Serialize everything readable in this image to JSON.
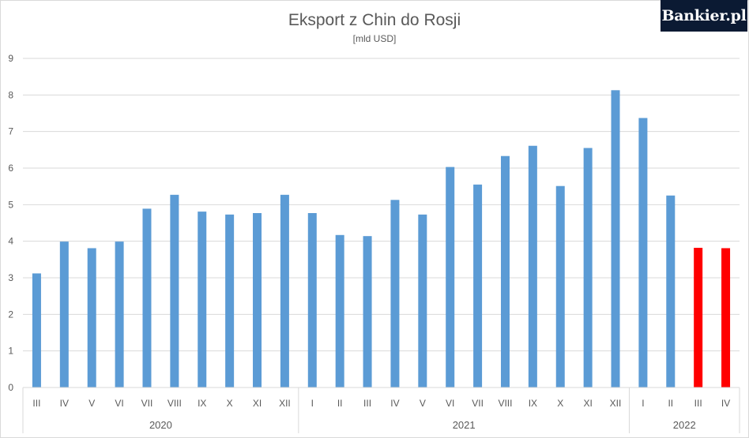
{
  "branding": {
    "logo_text": "Bankier.pl"
  },
  "chart_data": {
    "type": "bar",
    "title": "Eksport z Chin do Rosji",
    "subtitle": "[mld USD]",
    "xlabel": "",
    "ylabel": "",
    "ylim": [
      0,
      9
    ],
    "yticks": [
      0,
      1,
      2,
      3,
      4,
      5,
      6,
      7,
      8,
      9
    ],
    "grid": true,
    "groups": [
      {
        "label": "2020",
        "categories": [
          "III",
          "IV",
          "V",
          "VI",
          "VII",
          "VIII",
          "IX",
          "X",
          "XI",
          "XII"
        ]
      },
      {
        "label": "2021",
        "categories": [
          "I",
          "II",
          "III",
          "IV",
          "V",
          "VI",
          "VII",
          "VIII",
          "IX",
          "X",
          "XI",
          "XII"
        ]
      },
      {
        "label": "2022",
        "categories": [
          "I",
          "II",
          "III",
          "IV"
        ]
      }
    ],
    "values": [
      3.12,
      3.99,
      3.81,
      3.99,
      4.89,
      5.27,
      4.81,
      4.73,
      4.77,
      5.27,
      4.77,
      4.17,
      4.14,
      5.13,
      4.73,
      6.03,
      5.55,
      6.33,
      6.61,
      5.51,
      6.55,
      8.13,
      7.37,
      5.25,
      3.82,
      3.81
    ],
    "colors": [
      "#5b9bd5",
      "#5b9bd5",
      "#5b9bd5",
      "#5b9bd5",
      "#5b9bd5",
      "#5b9bd5",
      "#5b9bd5",
      "#5b9bd5",
      "#5b9bd5",
      "#5b9bd5",
      "#5b9bd5",
      "#5b9bd5",
      "#5b9bd5",
      "#5b9bd5",
      "#5b9bd5",
      "#5b9bd5",
      "#5b9bd5",
      "#5b9bd5",
      "#5b9bd5",
      "#5b9bd5",
      "#5b9bd5",
      "#5b9bd5",
      "#5b9bd5",
      "#5b9bd5",
      "#ff0000",
      "#ff0000"
    ],
    "gridline_color": "#d9d9d9"
  }
}
